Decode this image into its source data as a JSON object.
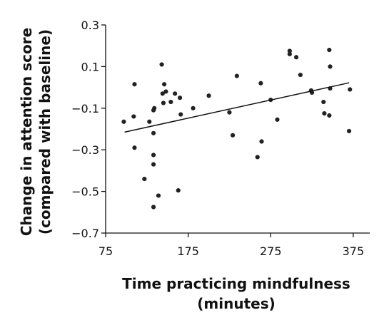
{
  "chart_data": {
    "type": "scatter",
    "title": "",
    "xlabel": [
      "Time practicing mindfulness",
      "(minutes)"
    ],
    "ylabel": [
      "Change in attention score",
      "(compared with baseline)"
    ],
    "xlim": [
      75,
      395
    ],
    "ylim": [
      -0.7,
      0.3
    ],
    "xticks": [
      75,
      175,
      275,
      375
    ],
    "yticks": [
      0.3,
      0.1,
      -0.1,
      -0.3,
      -0.5,
      -0.7
    ],
    "xtick_labels": [
      "75",
      "175",
      "275",
      "375"
    ],
    "ytick_labels": [
      "0.3",
      "0.1",
      "−0.1",
      "−0.3",
      "−0.5",
      "−0.7"
    ],
    "grid": false,
    "legend": "none",
    "point_color": "#222222",
    "line_color": "#111111",
    "trend_line": {
      "x": [
        98,
        370
      ],
      "y": [
        -0.215,
        0.022
      ]
    },
    "points": [
      {
        "x": 97,
        "y": -0.165
      },
      {
        "x": 109,
        "y": -0.14
      },
      {
        "x": 110,
        "y": 0.015
      },
      {
        "x": 110,
        "y": -0.29
      },
      {
        "x": 122,
        "y": -0.44
      },
      {
        "x": 128,
        "y": -0.165
      },
      {
        "x": 133,
        "y": -0.575
      },
      {
        "x": 133,
        "y": -0.37
      },
      {
        "x": 133,
        "y": -0.325
      },
      {
        "x": 133,
        "y": -0.22
      },
      {
        "x": 133,
        "y": -0.11
      },
      {
        "x": 134,
        "y": -0.1
      },
      {
        "x": 139,
        "y": -0.52
      },
      {
        "x": 143,
        "y": 0.11
      },
      {
        "x": 144,
        "y": -0.03
      },
      {
        "x": 145,
        "y": -0.075
      },
      {
        "x": 146,
        "y": 0.015
      },
      {
        "x": 148,
        "y": -0.02
      },
      {
        "x": 154,
        "y": -0.07
      },
      {
        "x": 159,
        "y": -0.03
      },
      {
        "x": 163,
        "y": -0.495
      },
      {
        "x": 165,
        "y": -0.05
      },
      {
        "x": 166,
        "y": -0.13
      },
      {
        "x": 181,
        "y": -0.1
      },
      {
        "x": 200,
        "y": -0.04
      },
      {
        "x": 225,
        "y": -0.12
      },
      {
        "x": 229,
        "y": -0.23
      },
      {
        "x": 234,
        "y": 0.055
      },
      {
        "x": 259,
        "y": -0.335
      },
      {
        "x": 263,
        "y": 0.02
      },
      {
        "x": 264,
        "y": -0.26
      },
      {
        "x": 275,
        "y": -0.06
      },
      {
        "x": 283,
        "y": -0.155
      },
      {
        "x": 298,
        "y": 0.175
      },
      {
        "x": 298,
        "y": 0.16
      },
      {
        "x": 306,
        "y": 0.145
      },
      {
        "x": 311,
        "y": 0.06
      },
      {
        "x": 324,
        "y": -0.015
      },
      {
        "x": 325,
        "y": -0.025
      },
      {
        "x": 339,
        "y": -0.07
      },
      {
        "x": 340,
        "y": -0.125
      },
      {
        "x": 346,
        "y": -0.135
      },
      {
        "x": 346,
        "y": 0.18
      },
      {
        "x": 347,
        "y": 0.1
      },
      {
        "x": 347,
        "y": -0.005
      },
      {
        "x": 370,
        "y": -0.21
      },
      {
        "x": 371,
        "y": -0.01
      }
    ]
  }
}
